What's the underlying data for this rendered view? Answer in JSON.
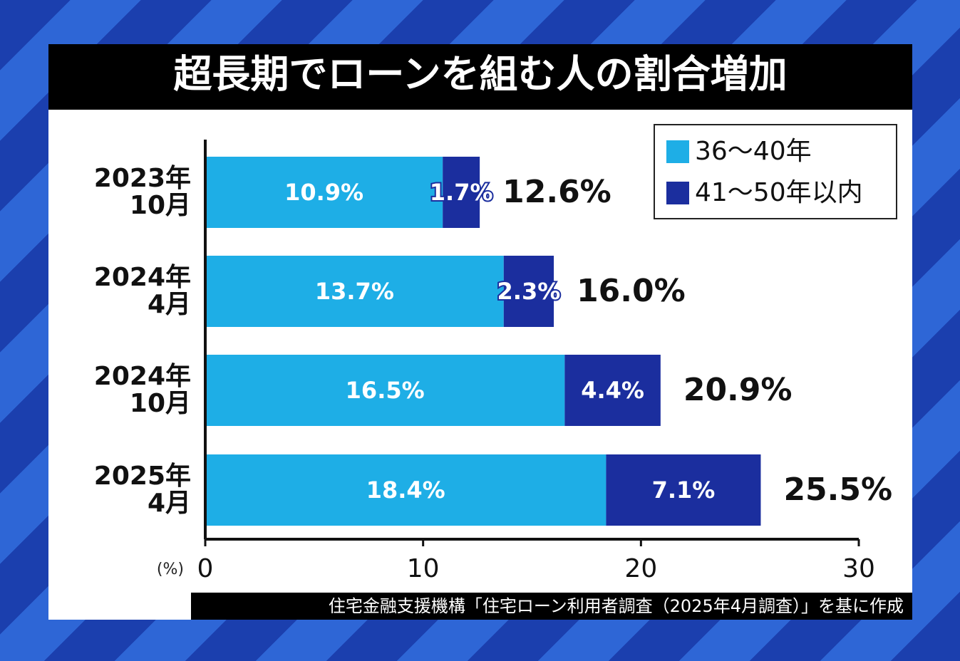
{
  "chart_data": {
    "type": "stacked_barh",
    "title": "超長期でローンを組む人の割合増加",
    "categories": [
      [
        "2023年",
        "10月"
      ],
      [
        "2024年",
        "4月"
      ],
      [
        "2024年",
        "10月"
      ],
      [
        "2025年",
        "4月"
      ]
    ],
    "series": [
      {
        "name": "36〜40年",
        "color": "#1eaee6",
        "values": [
          10.9,
          13.7,
          16.5,
          18.4
        ],
        "value_labels": [
          "10.9%",
          "13.7%",
          "16.5%",
          "18.4%"
        ]
      },
      {
        "name": "41〜50年以内",
        "color": "#1b2e9e",
        "values": [
          1.7,
          2.3,
          4.4,
          7.1
        ],
        "value_labels": [
          "1.7%",
          "2.3%",
          "4.4%",
          "7.1%"
        ]
      }
    ],
    "totals": [
      12.6,
      16.0,
      20.9,
      25.5
    ],
    "total_labels": [
      "12.6%",
      "16.0%",
      "20.9%",
      "25.5%"
    ],
    "xlabel": "(%)",
    "xlim": [
      0,
      30
    ],
    "xticks": [
      0,
      10,
      20,
      30
    ],
    "legend": "top-right",
    "source": "住宅金融支援機構「住宅ローン利用者調査（2025年4月調査）」を基に作成"
  }
}
